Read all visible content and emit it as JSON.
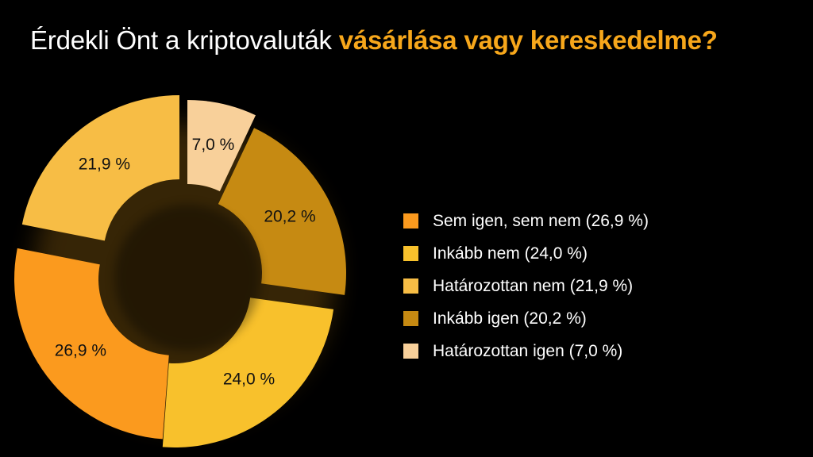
{
  "title": {
    "plain": "Érdekli Önt a kriptovaluták ",
    "highlight": "vásárlása vagy kereskedelme?",
    "highlight_color": "#f7a71b"
  },
  "chart_data": {
    "type": "pie",
    "donut": true,
    "categories": [
      "Sem igen, sem nem",
      "Inkább nem",
      "Határozottan nem",
      "Inkább igen",
      "Határozottan igen"
    ],
    "values": [
      26.9,
      24.0,
      21.9,
      20.2,
      7.0
    ],
    "data_labels": [
      "26,9 %",
      "24,0 %",
      "21,9 %",
      "20,2 %",
      "7,0 %"
    ],
    "colors": [
      "#fb9a1e",
      "#f8c12c",
      "#f7bd45",
      "#c68a12",
      "#f8d09a"
    ],
    "legend": [
      "Sem igen, sem nem (26,9 %)",
      "Inkább nem (24,0 %)",
      "Határozottan nem (21,9 %)",
      "Inkább igen (20,2 %)",
      "Határozottan igen (7,0 %)"
    ],
    "legend_position": "right"
  }
}
